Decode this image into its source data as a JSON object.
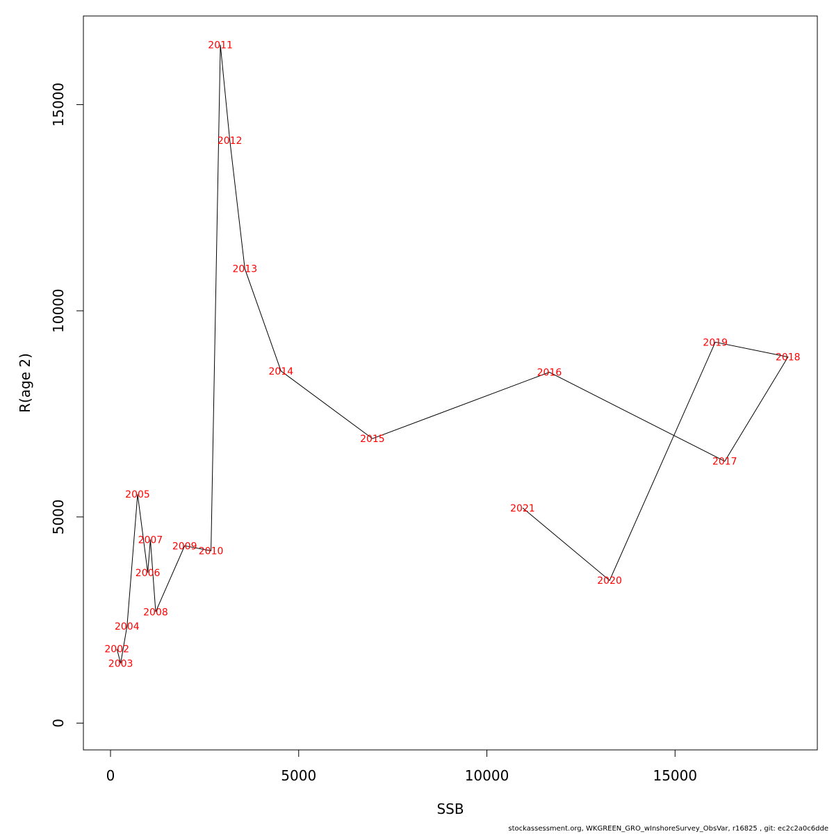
{
  "chart_data": {
    "type": "line",
    "title": "",
    "xlabel": "SSB",
    "ylabel": "R(age 2)",
    "xlim": [
      -720,
      18780
    ],
    "ylim": [
      -650,
      17150
    ],
    "x_ticks": [
      0,
      5000,
      10000,
      15000
    ],
    "x_tick_labels": [
      "0",
      "5000",
      "10000",
      "15000"
    ],
    "y_ticks": [
      0,
      5000,
      10000,
      15000
    ],
    "y_tick_labels": [
      "0",
      "5000",
      "10000",
      "15000"
    ],
    "grid": false,
    "line_color": "#000000",
    "label_color": "#ff0000",
    "points": [
      {
        "year": "2002",
        "ssb": 170,
        "r": 1800
      },
      {
        "year": "2003",
        "ssb": 270,
        "r": 1450
      },
      {
        "year": "2004",
        "ssb": 440,
        "r": 2350
      },
      {
        "year": "2005",
        "ssb": 720,
        "r": 5550
      },
      {
        "year": "2006",
        "ssb": 990,
        "r": 3650
      },
      {
        "year": "2007",
        "ssb": 1060,
        "r": 4450
      },
      {
        "year": "2008",
        "ssb": 1200,
        "r": 2700
      },
      {
        "year": "2009",
        "ssb": 1970,
        "r": 4300
      },
      {
        "year": "2010",
        "ssb": 2670,
        "r": 4180
      },
      {
        "year": "2011",
        "ssb": 2920,
        "r": 16450
      },
      {
        "year": "2012",
        "ssb": 3170,
        "r": 14130
      },
      {
        "year": "2013",
        "ssb": 3570,
        "r": 11020
      },
      {
        "year": "2014",
        "ssb": 4530,
        "r": 8540
      },
      {
        "year": "2015",
        "ssb": 6960,
        "r": 6900
      },
      {
        "year": "2016",
        "ssb": 11660,
        "r": 8510
      },
      {
        "year": "2017",
        "ssb": 16320,
        "r": 6350
      },
      {
        "year": "2018",
        "ssb": 18000,
        "r": 8880
      },
      {
        "year": "2019",
        "ssb": 16070,
        "r": 9240
      },
      {
        "year": "2020",
        "ssb": 13260,
        "r": 3460
      },
      {
        "year": "2021",
        "ssb": 10950,
        "r": 5220
      }
    ]
  },
  "footer_text": "stockassessment.org, WKGREEN_GRO_wInshoreSurvey_ObsVar, r16825 , git: ec2c2a0c6dde"
}
